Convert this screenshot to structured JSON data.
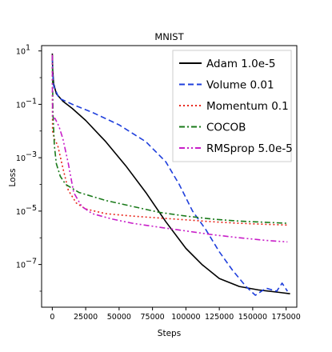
{
  "chart_data": {
    "type": "line",
    "title": "MNIST",
    "xlabel": "Steps",
    "ylabel": "Loss",
    "xlim": [
      -8000,
      183000
    ],
    "ylim_log10": [
      -8.6,
      1.2
    ],
    "yscale": "log",
    "grid": false,
    "legend_position": "top-right",
    "x_ticks": [
      0,
      25000,
      50000,
      75000,
      100000,
      125000,
      150000,
      175000
    ],
    "x_tick_labels": [
      "0",
      "25000",
      "50000",
      "75000",
      "100000",
      "125000",
      "150000",
      "175000"
    ],
    "y_ticks_exponent": [
      1,
      -1,
      -3,
      -5,
      -7
    ],
    "y_tick_labels": [
      "10",
      "10",
      "10",
      "10",
      "10"
    ],
    "y_tick_exponent_labels": [
      "1",
      "−1",
      "−3",
      "−5",
      "−7"
    ],
    "series": [
      {
        "name": "Adam 1.0e-5",
        "color": "#000000",
        "dash": "solid",
        "points": [
          [
            0,
            8.0
          ],
          [
            300,
            2.0
          ],
          [
            1000,
            0.6
          ],
          [
            3000,
            0.25
          ],
          [
            8000,
            0.13
          ],
          [
            15000,
            0.07
          ],
          [
            25000,
            0.025
          ],
          [
            40000,
            0.004
          ],
          [
            55000,
            0.0005
          ],
          [
            70000,
            5e-05
          ],
          [
            85000,
            4e-06
          ],
          [
            100000,
            4e-07
          ],
          [
            112000,
            1e-07
          ],
          [
            125000,
            3e-08
          ],
          [
            140000,
            1.5e-08
          ],
          [
            155000,
            1.1e-08
          ],
          [
            170000,
            9e-09
          ],
          [
            178000,
            8e-09
          ]
        ]
      },
      {
        "name": "Volume 0.01",
        "color": "#1f3fdc",
        "dash": "dashed",
        "points": [
          [
            0,
            6.0
          ],
          [
            300,
            1.5
          ],
          [
            1000,
            0.5
          ],
          [
            5000,
            0.17
          ],
          [
            15000,
            0.1
          ],
          [
            30000,
            0.05
          ],
          [
            50000,
            0.017
          ],
          [
            70000,
            0.004
          ],
          [
            85000,
            0.0007
          ],
          [
            95000,
            0.0001
          ],
          [
            105000,
            1e-05
          ],
          [
            115000,
            2e-06
          ],
          [
            125000,
            3e-07
          ],
          [
            135000,
            6e-08
          ],
          [
            145000,
            1.5e-08
          ],
          [
            152000,
            7e-09
          ],
          [
            160000,
            1.3e-08
          ],
          [
            168000,
            1e-08
          ],
          [
            172000,
            2e-08
          ],
          [
            176000,
            1e-08
          ]
        ]
      },
      {
        "name": "Momentum 0.1",
        "color": "#e8281e",
        "dash": "dotted",
        "points": [
          [
            0,
            7.0
          ],
          [
            200,
            0.01
          ],
          [
            1500,
            0.005
          ],
          [
            4000,
            0.003
          ],
          [
            8000,
            0.0004
          ],
          [
            12000,
            6e-05
          ],
          [
            18000,
            2e-05
          ],
          [
            25000,
            1.2e-05
          ],
          [
            40000,
            8e-06
          ],
          [
            60000,
            6.5e-06
          ],
          [
            80000,
            5.5e-06
          ],
          [
            100000,
            4.7e-06
          ],
          [
            120000,
            4e-06
          ],
          [
            140000,
            3.5e-06
          ],
          [
            160000,
            3.2e-06
          ],
          [
            176000,
            3e-06
          ]
        ]
      },
      {
        "name": "COCOB",
        "color": "#1a7a1a",
        "dash": "dashdot",
        "points": [
          [
            0,
            7.0
          ],
          [
            500,
            0.05
          ],
          [
            1500,
            0.003
          ],
          [
            3000,
            0.0006
          ],
          [
            6000,
            0.0002
          ],
          [
            10000,
            0.0001
          ],
          [
            20000,
            5e-05
          ],
          [
            40000,
            2.5e-05
          ],
          [
            60000,
            1.5e-05
          ],
          [
            80000,
            9e-06
          ],
          [
            100000,
            6.5e-06
          ],
          [
            120000,
            5e-06
          ],
          [
            140000,
            4.2e-06
          ],
          [
            160000,
            3.8e-06
          ],
          [
            176000,
            3.5e-06
          ]
        ]
      },
      {
        "name": "RMSprop 5.0e-5",
        "color": "#c81ec8",
        "dash": "dashdotdot",
        "points": [
          [
            0,
            7.0
          ],
          [
            200,
            0.03
          ],
          [
            2000,
            0.03
          ],
          [
            5000,
            0.015
          ],
          [
            8000,
            0.005
          ],
          [
            12000,
            0.0006
          ],
          [
            16000,
            5e-05
          ],
          [
            22000,
            1.5e-05
          ],
          [
            30000,
            8e-06
          ],
          [
            45000,
            5e-06
          ],
          [
            60000,
            3.5e-06
          ],
          [
            80000,
            2.5e-06
          ],
          [
            100000,
            1.8e-06
          ],
          [
            120000,
            1.3e-06
          ],
          [
            140000,
            1e-06
          ],
          [
            160000,
            8e-07
          ],
          [
            176000,
            7e-07
          ]
        ]
      }
    ]
  }
}
